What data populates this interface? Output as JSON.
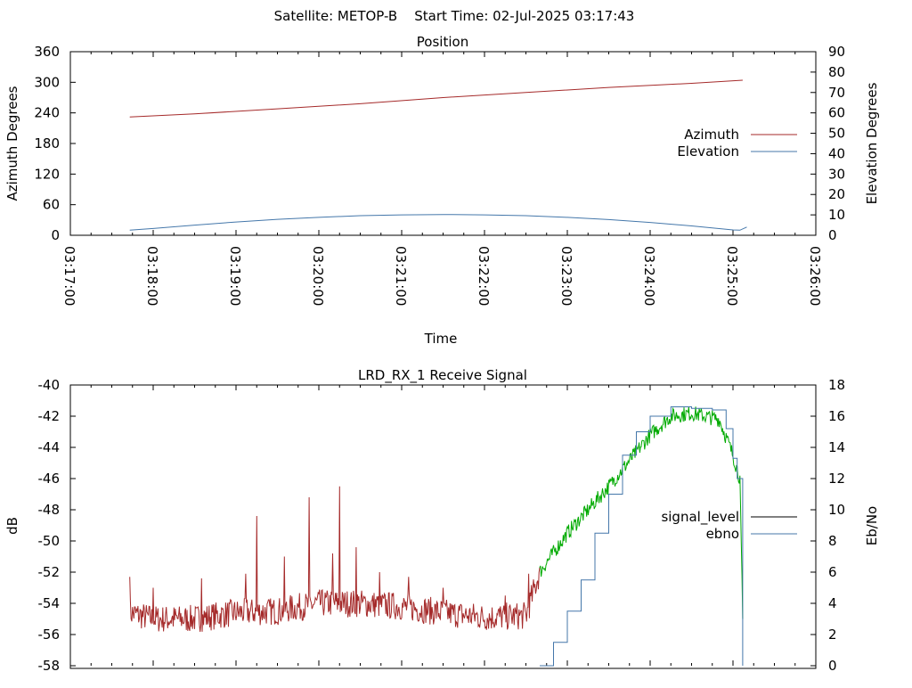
{
  "figure": {
    "header": "Satellite: METOP-B    Start Time: 02-Jul-2025 03:17:43"
  },
  "chart_data": [
    {
      "type": "line",
      "title": "Position",
      "xlabel": "Time",
      "ylabel": "Azimuth Degrees",
      "y2label": "Elevation Degrees",
      "xlim": [
        "03:17:00",
        "03:26:00"
      ],
      "x_ticks": [
        "03:17:00",
        "03:18:00",
        "03:19:00",
        "03:20:00",
        "03:21:00",
        "03:22:00",
        "03:23:00",
        "03:24:00",
        "03:25:00",
        "03:26:00"
      ],
      "ylim": [
        0,
        360
      ],
      "y_ticks": [
        "0",
        "60",
        "120",
        "180",
        "240",
        "300",
        "360"
      ],
      "y2lim": [
        0,
        90
      ],
      "y2_ticks": [
        "0",
        "10",
        "20",
        "30",
        "40",
        "50",
        "60",
        "70",
        "80",
        "90"
      ],
      "legend_position": "right",
      "series": [
        {
          "name": "Azimuth",
          "axis": "left",
          "color": "#a52a2a",
          "points": [
            [
              "03:17:43",
              232
            ],
            [
              "03:18:30",
              238
            ],
            [
              "03:19:30",
              248
            ],
            [
              "03:20:30",
              258
            ],
            [
              "03:21:30",
              270
            ],
            [
              "03:22:30",
              280
            ],
            [
              "03:23:30",
              290
            ],
            [
              "03:24:30",
              298
            ],
            [
              "03:25:07",
              304
            ]
          ]
        },
        {
          "name": "Elevation",
          "axis": "right",
          "color": "#4477aa",
          "points": [
            [
              "03:17:43",
              2.5
            ],
            [
              "03:18:00",
              3.3
            ],
            [
              "03:18:30",
              5.0
            ],
            [
              "03:19:00",
              6.5
            ],
            [
              "03:19:30",
              7.8
            ],
            [
              "03:20:00",
              8.8
            ],
            [
              "03:20:30",
              9.6
            ],
            [
              "03:21:00",
              10.0
            ],
            [
              "03:21:30",
              10.2
            ],
            [
              "03:22:00",
              10.0
            ],
            [
              "03:22:30",
              9.6
            ],
            [
              "03:23:00",
              8.8
            ],
            [
              "03:23:30",
              7.7
            ],
            [
              "03:24:00",
              6.3
            ],
            [
              "03:24:30",
              4.6
            ],
            [
              "03:25:00",
              2.6
            ],
            [
              "03:25:05",
              2.5
            ],
            [
              "03:25:10",
              4.0
            ]
          ]
        }
      ]
    },
    {
      "type": "line",
      "title": "LRD_RX_1 Receive Signal",
      "xlabel": "",
      "ylabel": "dB",
      "y2label": "Eb/No",
      "xlim": [
        "03:17:00",
        "03:26:00"
      ],
      "ylim": [
        -58,
        -40
      ],
      "y_ticks": [
        "-58",
        "-56",
        "-54",
        "-52",
        "-50",
        "-48",
        "-46",
        "-44",
        "-42",
        "-40"
      ],
      "y2lim": [
        0,
        18
      ],
      "y2_ticks": [
        "0",
        "2",
        "4",
        "6",
        "8",
        "10",
        "12",
        "14",
        "16",
        "18"
      ],
      "legend_position": "right",
      "legend": [
        {
          "name": "signal_level",
          "color": "#000000"
        },
        {
          "name": "ebno",
          "color": "#4477aa"
        }
      ],
      "series": [
        {
          "name": "signal_level",
          "axis": "left",
          "color_segments": [
            [
              "03:17:43",
              "03:22:40",
              "#a52a2a"
            ],
            [
              "03:22:40",
              "03:25:07",
              "#00aa00"
            ]
          ],
          "baseline_points": [
            [
              "03:17:43",
              -54.6
            ],
            [
              "03:18:00",
              -55.0
            ],
            [
              "03:18:30",
              -55.0
            ],
            [
              "03:19:00",
              -54.6
            ],
            [
              "03:19:30",
              -54.5
            ],
            [
              "03:20:00",
              -54.0
            ],
            [
              "03:20:30",
              -54.0
            ],
            [
              "03:21:00",
              -54.2
            ],
            [
              "03:21:30",
              -54.6
            ],
            [
              "03:22:00",
              -54.9
            ],
            [
              "03:22:30",
              -54.8
            ],
            [
              "03:22:40",
              -52.0
            ],
            [
              "03:23:00",
              -49.5
            ],
            [
              "03:23:30",
              -46.5
            ],
            [
              "03:24:00",
              -43.2
            ],
            [
              "03:24:15",
              -42.0
            ],
            [
              "03:24:30",
              -41.8
            ],
            [
              "03:24:50",
              -42.2
            ],
            [
              "03:25:00",
              -44.5
            ],
            [
              "03:25:05",
              -46.0
            ],
            [
              "03:25:07",
              -55.0
            ]
          ],
          "peaks": [
            [
              "03:17:43",
              -52.3
            ],
            [
              "03:18:00",
              -53.0
            ],
            [
              "03:18:35",
              -52.4
            ],
            [
              "03:19:07",
              -52.1
            ],
            [
              "03:19:15",
              -48.4
            ],
            [
              "03:19:35",
              -51.0
            ],
            [
              "03:19:53",
              -47.2
            ],
            [
              "03:20:10",
              -50.8
            ],
            [
              "03:20:15",
              -46.5
            ],
            [
              "03:20:27",
              -50.4
            ],
            [
              "03:20:44",
              -52.0
            ],
            [
              "03:21:05",
              -52.3
            ],
            [
              "03:21:30",
              -53.0
            ],
            [
              "03:22:15",
              -53.5
            ],
            [
              "03:22:32",
              -52.1
            ]
          ]
        },
        {
          "name": "ebno",
          "axis": "right",
          "color": "#4477aa",
          "points": [
            [
              "03:22:40",
              0
            ],
            [
              "03:22:50",
              1.5
            ],
            [
              "03:23:00",
              3.5
            ],
            [
              "03:23:10",
              5.5
            ],
            [
              "03:23:20",
              8.5
            ],
            [
              "03:23:30",
              11.0
            ],
            [
              "03:23:40",
              13.5
            ],
            [
              "03:23:50",
              15.0
            ],
            [
              "03:24:00",
              16.0
            ],
            [
              "03:24:15",
              16.6
            ],
            [
              "03:24:30",
              16.5
            ],
            [
              "03:24:45",
              16.4
            ],
            [
              "03:24:55",
              15.2
            ],
            [
              "03:25:00",
              13.3
            ],
            [
              "03:25:03",
              12.0
            ],
            [
              "03:25:07",
              0
            ]
          ]
        }
      ]
    }
  ]
}
